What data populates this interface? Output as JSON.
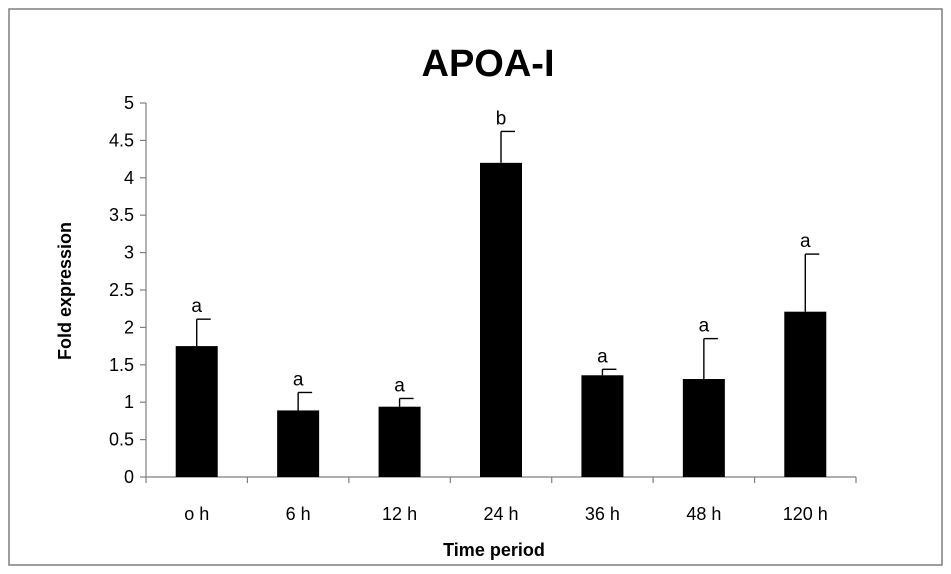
{
  "chart_data": {
    "type": "bar",
    "title": "APOA-I",
    "xlabel": "Time period",
    "ylabel": "Fold expression",
    "categories": [
      "o h",
      "6 h",
      "12 h",
      "24 h",
      "36 h",
      "48 h",
      "120 h"
    ],
    "values": [
      1.75,
      0.89,
      0.94,
      4.2,
      1.36,
      1.31,
      2.21
    ],
    "error_upper": [
      0.36,
      0.24,
      0.11,
      0.42,
      0.08,
      0.54,
      0.77
    ],
    "significance": [
      "a",
      "a",
      "a",
      "b",
      "a",
      "a",
      "a"
    ],
    "ylim": [
      0,
      5
    ],
    "yticks": [
      "0",
      "0.5",
      "1",
      "1.5",
      "2",
      "2.5",
      "3",
      "3.5",
      "4",
      "4.5",
      "5"
    ],
    "grid": false,
    "legend": "none",
    "bar_color": "#000000"
  }
}
